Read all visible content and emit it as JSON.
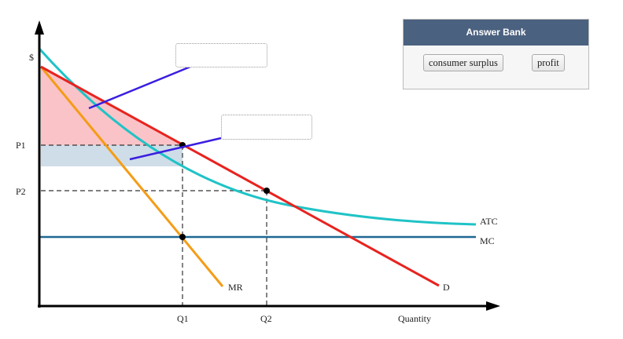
{
  "answer_bank": {
    "title": "Answer Bank",
    "items": [
      "consumer surplus",
      "profit"
    ]
  },
  "drop_targets": [
    {
      "value": ""
    },
    {
      "value": ""
    }
  ],
  "chart_data": {
    "type": "diagram",
    "axes": {
      "y_label": "$",
      "x_label": "Quantity"
    },
    "price_ticks": [
      "P1",
      "P2"
    ],
    "quantity_ticks": [
      "Q1",
      "Q2"
    ],
    "curves": [
      {
        "name": "D",
        "color": "#e8231f"
      },
      {
        "name": "MR",
        "color": "#f59c16"
      },
      {
        "name": "ATC",
        "color": "#1fc3c6"
      },
      {
        "name": "MC",
        "color": "#1f6891"
      }
    ],
    "regions": [
      {
        "name": "consumer surplus region",
        "color": "#f9c3c8"
      },
      {
        "name": "profit region",
        "color": "#cfdde8"
      }
    ],
    "points": [
      "Q1,P1 on D",
      "Q2,P2 on D",
      "Q1 on MC"
    ]
  }
}
